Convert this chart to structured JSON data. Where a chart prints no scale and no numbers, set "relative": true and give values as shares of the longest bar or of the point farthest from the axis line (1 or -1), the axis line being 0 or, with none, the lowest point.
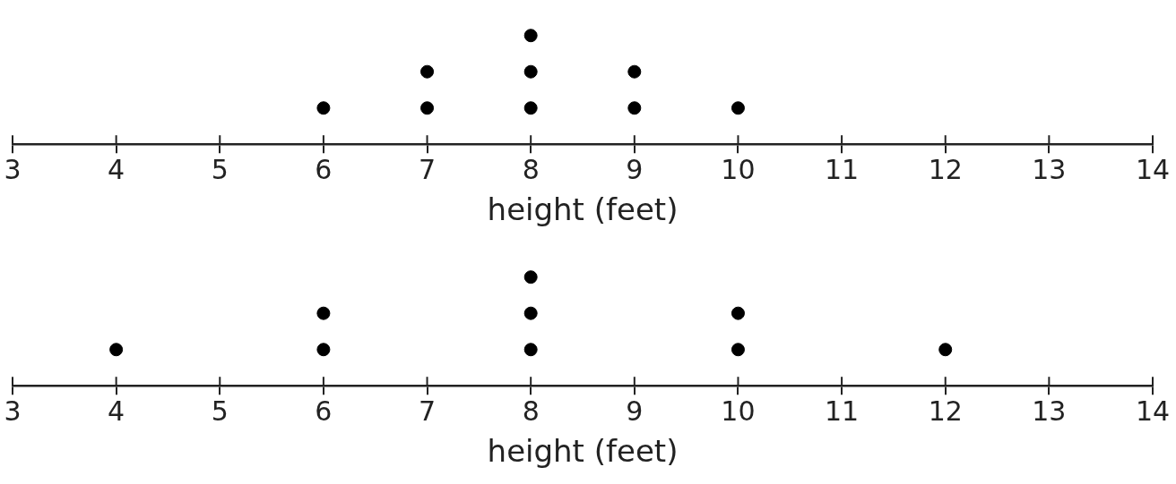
{
  "chart_data": [
    {
      "type": "scatter",
      "relative": true,
      "xlabel": "height (feet)",
      "x": [
        6,
        7,
        7,
        8,
        8,
        8,
        9,
        9,
        10
      ],
      "values": [
        0.333,
        0.333,
        0.667,
        0.333,
        0.667,
        1,
        0.333,
        0.667,
        0.333
      ],
      "color": "#000000",
      "marker": "circle",
      "xlim": [
        3,
        14
      ],
      "xticks": [
        3,
        4,
        5,
        6,
        7,
        8,
        9,
        10,
        11,
        12,
        13,
        14
      ],
      "tick_labels": "x"
    },
    {
      "type": "scatter",
      "relative": true,
      "xlabel": "height (feet)",
      "x": [
        4,
        6,
        6,
        8,
        8,
        8,
        10,
        10,
        12
      ],
      "values": [
        0.333,
        0.333,
        0.667,
        0.333,
        0.667,
        1,
        0.333,
        0.667,
        0.333
      ],
      "color": "#000000",
      "marker": "circle",
      "xlim": [
        3,
        14
      ],
      "xticks": [
        3,
        4,
        5,
        6,
        7,
        8,
        9,
        10,
        11,
        12,
        13,
        14
      ],
      "tick_labels": "x"
    }
  ]
}
